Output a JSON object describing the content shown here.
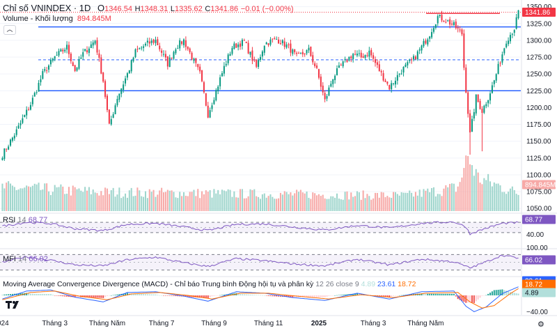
{
  "header": {
    "symbol": "Chỉ số VNINDEX · 1D",
    "o_label": "O",
    "o_value": "1346.54",
    "h_label": "H",
    "h_value": "1348.31",
    "l_label": "L",
    "l_value": "1335.62",
    "c_label": "C",
    "c_value": "1341.86",
    "change": "−0.01 (−0.00%)",
    "volume_label": "Volume - Khối lượng",
    "volume_value": "894.845M",
    "collapse_glyph": "︿"
  },
  "colors": {
    "up": "#089981",
    "down": "#f23645",
    "vol_up": "#9ed5cc",
    "vol_down": "#f7a9a7",
    "blue": "#2962ff",
    "purple": "#7e57c2",
    "grid": "#f0f3fa",
    "macd": "#2962ff",
    "signal": "#ff6d00",
    "hist_up": "#26a69a",
    "hist_down": "#ef5350"
  },
  "chart_data": {
    "type": "candlestick",
    "title": "Chỉ số VNINDEX · 1D",
    "price_axis": {
      "ylim": [
        1044,
        1360
      ],
      "ticks": [
        "1350.00",
        "1325.00",
        "1300.00",
        "1275.00",
        "1250.00",
        "1225.00",
        "1200.00",
        "1175.00",
        "1150.00",
        "1125.00",
        "1100.00",
        "1075.00",
        "1050.00"
      ],
      "last_price_label": "1341.86",
      "volume_label": "894.845M"
    },
    "price_path": [
      [
        0,
        1130
      ],
      [
        7,
        1165
      ],
      [
        14,
        1205
      ],
      [
        20,
        1250
      ],
      [
        26,
        1275
      ],
      [
        32,
        1290
      ],
      [
        36,
        1255
      ],
      [
        40,
        1280
      ],
      [
        46,
        1300
      ],
      [
        50,
        1240
      ],
      [
        53,
        1172
      ],
      [
        57,
        1215
      ],
      [
        62,
        1250
      ],
      [
        66,
        1283
      ],
      [
        72,
        1295
      ],
      [
        76,
        1300
      ],
      [
        82,
        1265
      ],
      [
        86,
        1290
      ],
      [
        90,
        1300
      ],
      [
        98,
        1250
      ],
      [
        102,
        1190
      ],
      [
        106,
        1225
      ],
      [
        110,
        1260
      ],
      [
        114,
        1290
      ],
      [
        120,
        1298
      ],
      [
        126,
        1260
      ],
      [
        130,
        1295
      ],
      [
        136,
        1302
      ],
      [
        142,
        1290
      ],
      [
        146,
        1275
      ],
      [
        152,
        1285
      ],
      [
        156,
        1255
      ],
      [
        160,
        1210
      ],
      [
        164,
        1245
      ],
      [
        168,
        1262
      ],
      [
        174,
        1280
      ],
      [
        178,
        1275
      ],
      [
        182,
        1283
      ],
      [
        188,
        1250
      ],
      [
        192,
        1230
      ],
      [
        198,
        1255
      ],
      [
        204,
        1272
      ],
      [
        208,
        1290
      ],
      [
        212,
        1310
      ],
      [
        216,
        1335
      ],
      [
        220,
        1330
      ],
      [
        224,
        1322
      ],
      [
        228,
        1310
      ],
      [
        229,
        1260
      ],
      [
        232,
        1160
      ],
      [
        235,
        1215
      ],
      [
        238,
        1195
      ],
      [
        241,
        1215
      ],
      [
        244,
        1240
      ],
      [
        247,
        1270
      ],
      [
        250,
        1300
      ],
      [
        254,
        1318
      ],
      [
        256,
        1341.86
      ]
    ],
    "volume_path": [
      [
        0,
        1.0
      ],
      [
        50,
        0.8
      ],
      [
        100,
        0.75
      ],
      [
        150,
        0.7
      ],
      [
        200,
        0.65
      ],
      [
        226,
        1.0
      ],
      [
        231,
        2.3
      ],
      [
        236,
        1.4
      ],
      [
        256,
        0.75
      ]
    ],
    "resistance_lines": [
      1320,
      1225
    ],
    "dashed_levels": [
      1271
    ],
    "top_level": 1340,
    "x_labels": [
      "024",
      "Tháng 3",
      "Tháng Năm",
      "Tháng 7",
      "Tháng 9",
      "Tháng 11",
      "2025",
      "Tháng 3",
      "Tháng Năm"
    ],
    "x_label_days": [
      0,
      26,
      52,
      79,
      105,
      132,
      157,
      184,
      210
    ],
    "rsi": {
      "label": "RSI",
      "period": "14",
      "value": "68.77",
      "ticks": [
        "40.00"
      ],
      "badge": "68.77",
      "path": [
        [
          0,
          55
        ],
        [
          12,
          70
        ],
        [
          24,
          65
        ],
        [
          36,
          45
        ],
        [
          50,
          38
        ],
        [
          62,
          62
        ],
        [
          76,
          66
        ],
        [
          90,
          52
        ],
        [
          102,
          38
        ],
        [
          116,
          62
        ],
        [
          130,
          64
        ],
        [
          144,
          52
        ],
        [
          160,
          40
        ],
        [
          176,
          58
        ],
        [
          192,
          48
        ],
        [
          208,
          66
        ],
        [
          224,
          72
        ],
        [
          230,
          52
        ],
        [
          232,
          25
        ],
        [
          238,
          42
        ],
        [
          248,
          66
        ],
        [
          256,
          68.77
        ]
      ]
    },
    "mfi": {
      "label": "MFI",
      "period": "14",
      "value": "66.02",
      "ticks": [
        "100.00"
      ],
      "badge": "66.02",
      "path": [
        [
          0,
          50
        ],
        [
          12,
          72
        ],
        [
          24,
          58
        ],
        [
          36,
          40
        ],
        [
          50,
          36
        ],
        [
          62,
          60
        ],
        [
          76,
          70
        ],
        [
          90,
          48
        ],
        [
          102,
          34
        ],
        [
          116,
          64
        ],
        [
          130,
          56
        ],
        [
          144,
          44
        ],
        [
          160,
          36
        ],
        [
          176,
          62
        ],
        [
          192,
          40
        ],
        [
          208,
          62
        ],
        [
          224,
          52
        ],
        [
          232,
          28
        ],
        [
          240,
          52
        ],
        [
          248,
          78
        ],
        [
          256,
          66.02
        ]
      ]
    },
    "macd": {
      "label": "Moving Average Convergence Divergence (MACD) - Chỉ báo Trung bình Động hội tụ và phân kỳ",
      "params": "12 26 close 9",
      "hist": "4.89",
      "macd_value": "23.61",
      "signal_value": "18.72",
      "ticks": [
        "−40.00"
      ],
      "badge_top": "23.61",
      "badge_signal": "18.72",
      "badge_hist": "4.89",
      "macd_path": [
        [
          0,
          -10
        ],
        [
          12,
          12
        ],
        [
          24,
          15
        ],
        [
          36,
          -5
        ],
        [
          50,
          -18
        ],
        [
          62,
          8
        ],
        [
          76,
          10
        ],
        [
          90,
          -2
        ],
        [
          102,
          -16
        ],
        [
          116,
          10
        ],
        [
          130,
          6
        ],
        [
          144,
          -6
        ],
        [
          160,
          -14
        ],
        [
          176,
          6
        ],
        [
          192,
          -10
        ],
        [
          208,
          10
        ],
        [
          224,
          12
        ],
        [
          230,
          -30
        ],
        [
          234,
          -45
        ],
        [
          240,
          -32
        ],
        [
          248,
          5
        ],
        [
          256,
          23.61
        ]
      ],
      "signal_path": [
        [
          0,
          -12
        ],
        [
          14,
          8
        ],
        [
          26,
          12
        ],
        [
          38,
          -2
        ],
        [
          52,
          -12
        ],
        [
          64,
          4
        ],
        [
          78,
          8
        ],
        [
          92,
          0
        ],
        [
          104,
          -10
        ],
        [
          118,
          6
        ],
        [
          132,
          6
        ],
        [
          146,
          -2
        ],
        [
          162,
          -10
        ],
        [
          178,
          2
        ],
        [
          194,
          -6
        ],
        [
          210,
          6
        ],
        [
          226,
          8
        ],
        [
          232,
          -18
        ],
        [
          238,
          -35
        ],
        [
          244,
          -28
        ],
        [
          252,
          5
        ],
        [
          256,
          18.72
        ]
      ]
    }
  }
}
